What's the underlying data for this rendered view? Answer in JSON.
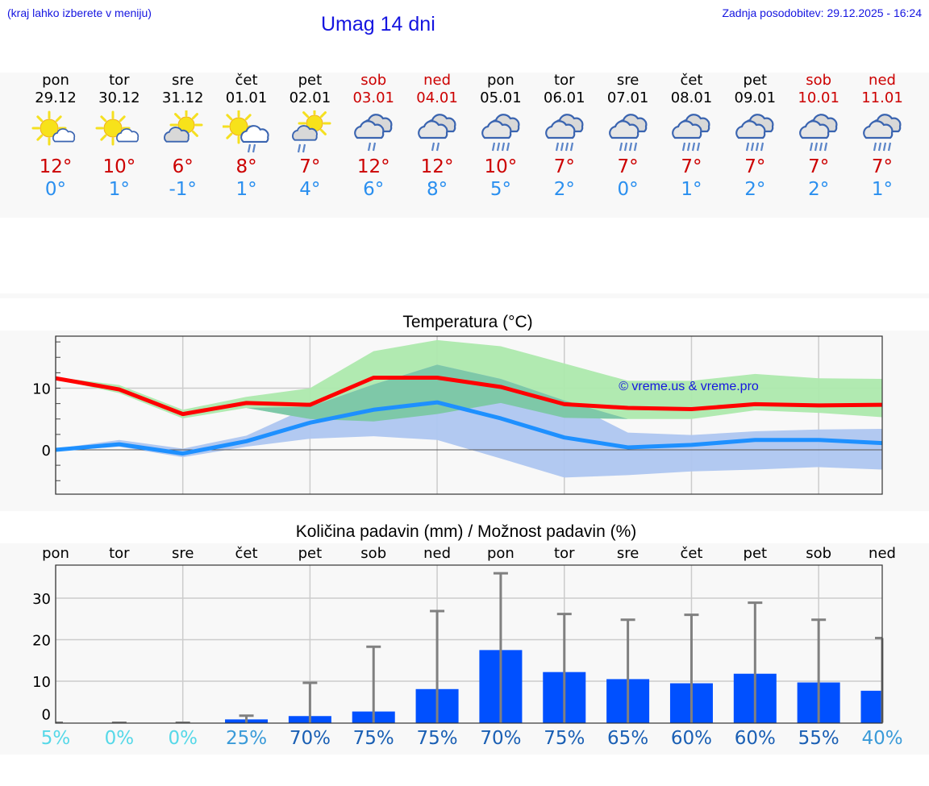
{
  "header": {
    "menu_hint": "(kraj lahko izberete v meniju)",
    "title": "Umag 14 dni",
    "last_update": "Zadnja posodobitev: 29.12.2025 - 16:24"
  },
  "days": [
    {
      "name": "pon",
      "date": "29.12",
      "weekend": false,
      "icon": "sun-with-cloud-icon",
      "max": "12°",
      "min": "0°"
    },
    {
      "name": "tor",
      "date": "30.12",
      "weekend": false,
      "icon": "sun-with-cloud-icon",
      "max": "10°",
      "min": "1°"
    },
    {
      "name": "sre",
      "date": "31.12",
      "weekend": false,
      "icon": "cloud-with-sun-icon",
      "max": "6°",
      "min": "-1°"
    },
    {
      "name": "čet",
      "date": "01.01",
      "weekend": false,
      "icon": "sun-cloud-light-rain-icon",
      "max": "8°",
      "min": "1°"
    },
    {
      "name": "pet",
      "date": "02.01",
      "weekend": false,
      "icon": "cloud-sun-light-rain-icon",
      "max": "7°",
      "min": "4°"
    },
    {
      "name": "sob",
      "date": "03.01",
      "weekend": true,
      "icon": "cloudy-light-rain-icon",
      "max": "12°",
      "min": "6°"
    },
    {
      "name": "ned",
      "date": "04.01",
      "weekend": true,
      "icon": "cloudy-light-rain-icon",
      "max": "12°",
      "min": "8°"
    },
    {
      "name": "pon",
      "date": "05.01",
      "weekend": false,
      "icon": "cloudy-rain-icon",
      "max": "10°",
      "min": "5°"
    },
    {
      "name": "tor",
      "date": "06.01",
      "weekend": false,
      "icon": "cloudy-rain-icon",
      "max": "7°",
      "min": "2°"
    },
    {
      "name": "sre",
      "date": "07.01",
      "weekend": false,
      "icon": "cloudy-rain-icon",
      "max": "7°",
      "min": "0°"
    },
    {
      "name": "čet",
      "date": "08.01",
      "weekend": false,
      "icon": "cloudy-rain-icon",
      "max": "7°",
      "min": "1°"
    },
    {
      "name": "pet",
      "date": "09.01",
      "weekend": false,
      "icon": "cloudy-rain-icon",
      "max": "7°",
      "min": "2°"
    },
    {
      "name": "sob",
      "date": "10.01",
      "weekend": true,
      "icon": "cloudy-rain-icon",
      "max": "7°",
      "min": "2°"
    },
    {
      "name": "ned",
      "date": "11.01",
      "weekend": true,
      "icon": "cloudy-rain-icon",
      "max": "7°",
      "min": "1°"
    }
  ],
  "colors": {
    "title_blue": "#1515e0",
    "max_red": "#cc0000",
    "min_blue": "#2a8fef",
    "max_line": "#ff0000",
    "min_line": "#1e90ff",
    "max_band": "#ade9ad",
    "min_band": "#aec6f0",
    "overlap_band": "#7ec8a8",
    "precip_bar": "#0050ff",
    "errorbar": "#808080"
  },
  "chart_data": [
    {
      "type": "line",
      "title": "Temperatura (°C)",
      "watermark": "© vreme.us & vreme.pro",
      "categories": [
        "pon",
        "tor",
        "sre",
        "čet",
        "pet",
        "sob",
        "ned",
        "pon",
        "tor",
        "sre",
        "čet",
        "pet",
        "sob",
        "ned"
      ],
      "ylim": [
        -7,
        18
      ],
      "yticks": [
        0,
        10
      ],
      "grid": true,
      "series": [
        {
          "name": "Max",
          "values": [
            11.6,
            9.8,
            5.8,
            7.6,
            7.3,
            11.7,
            11.7,
            10.2,
            7.4,
            6.8,
            6.6,
            7.4,
            7.2,
            7.3
          ]
        },
        {
          "name": "Min",
          "values": [
            0,
            0.9,
            -0.6,
            1.4,
            4.4,
            6.5,
            7.7,
            5.1,
            2,
            0.4,
            0.8,
            1.6,
            1.6,
            1.1
          ]
        },
        {
          "name": "Max range",
          "upper": [
            11.8,
            10.5,
            6.5,
            8.6,
            10,
            16,
            17.8,
            16.8,
            14,
            11.2,
            11.2,
            12.3,
            11.6,
            11.5
          ],
          "lower": [
            11.4,
            9.2,
            5.1,
            6.8,
            5,
            4.6,
            5.8,
            7.6,
            5.2,
            5,
            5,
            6.4,
            6,
            5.3
          ]
        },
        {
          "name": "Min range",
          "upper": [
            0.2,
            1.6,
            0.2,
            2.3,
            7,
            10.6,
            13.8,
            11.5,
            8,
            2.8,
            2.4,
            3,
            3.3,
            3.4
          ],
          "lower": [
            -0.2,
            0.5,
            -1.2,
            0.5,
            1.8,
            2.2,
            1.6,
            -1.4,
            -4.5,
            -4.1,
            -3.5,
            -3.2,
            -2.8,
            -3.2
          ]
        }
      ]
    },
    {
      "type": "bar",
      "title": "Količina padavin (mm) / Možnost padavin (%)",
      "categories": [
        "pon",
        "tor",
        "sre",
        "čet",
        "pet",
        "sob",
        "ned",
        "pon",
        "tor",
        "sre",
        "čet",
        "pet",
        "sob",
        "ned"
      ],
      "ylim": [
        -2,
        38
      ],
      "yticks": [
        0,
        10,
        20,
        30
      ],
      "grid": true,
      "values": [
        0,
        0,
        0,
        0.8,
        1.6,
        2.7,
        8.1,
        17.5,
        12.2,
        10.5,
        9.5,
        11.8,
        9.7,
        7.7
      ],
      "error_high": [
        0,
        0,
        0,
        1.7,
        9.6,
        18.3,
        26.9,
        36,
        26.2,
        24.8,
        26,
        28.9,
        24.8,
        20.4
      ],
      "probability": [
        "5%",
        "0%",
        "0%",
        "25%",
        "70%",
        "75%",
        "75%",
        "70%",
        "75%",
        "65%",
        "60%",
        "60%",
        "55%",
        "40%"
      ],
      "probability_colors": [
        "#56d8e8",
        "#56d8e8",
        "#56d8e8",
        "#3a9ad8",
        "#1a5fb4",
        "#1a5fb4",
        "#1a5fb4",
        "#1a5fb4",
        "#1a5fb4",
        "#1a5fb4",
        "#1a5fb4",
        "#1a5fb4",
        "#1a5fb4",
        "#3a9ad8"
      ]
    }
  ]
}
